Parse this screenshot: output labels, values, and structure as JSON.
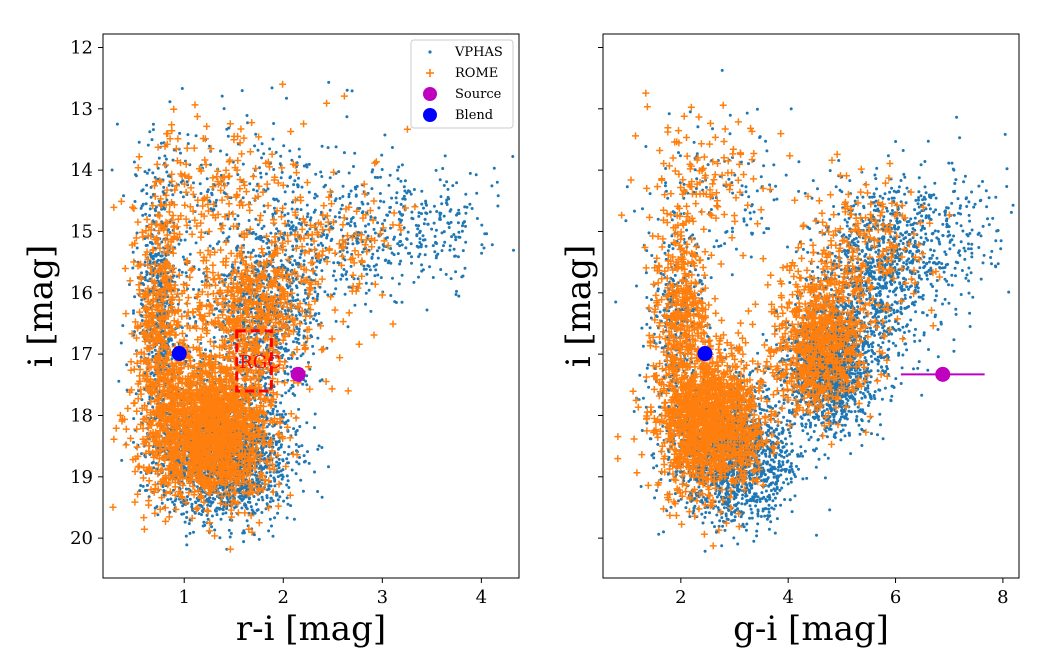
{
  "colors": {
    "vphas": "#1f77b4",
    "rome": "#ff7f0e",
    "source": "#bf00bf",
    "blend": "#0000ff",
    "rgc": "#ff0000"
  },
  "chart_data": [
    {
      "type": "scatter",
      "panel": "left",
      "xlabel": "r-i [mag]",
      "ylabel": "i [mag]",
      "xlim": [
        0.18,
        4.38
      ],
      "ylim": [
        20.65,
        11.78
      ],
      "y_inverted": true,
      "xticks": [
        1,
        2,
        3,
        4
      ],
      "yticks": [
        12,
        13,
        14,
        15,
        16,
        17,
        18,
        19,
        20
      ],
      "legend": {
        "location": "top-right",
        "entries": [
          {
            "label": "VPHAS",
            "marker": "dot"
          },
          {
            "label": "ROME",
            "marker": "plus"
          },
          {
            "label": "Source",
            "marker": "circle"
          },
          {
            "label": "Blend",
            "marker": "circle"
          }
        ]
      },
      "annotation": {
        "text": "RGC",
        "box_x": [
          1.53,
          1.88
        ],
        "box_y": [
          16.62,
          17.6
        ]
      },
      "source": {
        "x": 2.15,
        "y": 17.33,
        "xerr": 0
      },
      "blend": {
        "x": 0.95,
        "y": 16.99
      },
      "series": [
        {
          "name": "VPHAS",
          "regions": [
            {
              "cx": 1.4,
              "cy": 18.6,
              "sx": 0.33,
              "sy": 0.55,
              "n": 2200
            },
            {
              "cx": 0.75,
              "cy": 16.3,
              "sx": 0.12,
              "sy": 1.1,
              "n": 650
            },
            {
              "cx": 1.8,
              "cy": 16.3,
              "sx": 0.28,
              "sy": 0.7,
              "n": 900
            },
            {
              "cx": 2.7,
              "cy": 15.0,
              "sx": 0.55,
              "sy": 0.55,
              "n": 420
            },
            {
              "cx": 3.5,
              "cy": 14.9,
              "sx": 0.35,
              "sy": 0.45,
              "n": 140
            },
            {
              "cx": 1.5,
              "cy": 14.2,
              "sx": 0.6,
              "sy": 0.55,
              "n": 180
            }
          ]
        },
        {
          "name": "ROME",
          "regions": [
            {
              "cx": 1.25,
              "cy": 18.2,
              "sx": 0.3,
              "sy": 0.6,
              "n": 1700
            },
            {
              "cx": 0.75,
              "cy": 16.5,
              "sx": 0.13,
              "sy": 1.0,
              "n": 450
            },
            {
              "cx": 1.7,
              "cy": 16.4,
              "sx": 0.28,
              "sy": 0.6,
              "n": 500
            },
            {
              "cx": 2.4,
              "cy": 15.2,
              "sx": 0.45,
              "sy": 0.6,
              "n": 160
            },
            {
              "cx": 1.4,
              "cy": 14.3,
              "sx": 0.5,
              "sy": 0.6,
              "n": 160
            },
            {
              "cx": 1.2,
              "cy": 17.8,
              "sx": 0.55,
              "sy": 0.9,
              "n": 60
            }
          ]
        }
      ]
    },
    {
      "type": "scatter",
      "panel": "right",
      "xlabel": "g-i [mag]",
      "ylabel": "i [mag]",
      "xlim": [
        0.55,
        8.3
      ],
      "ylim": [
        20.65,
        11.78
      ],
      "y_inverted": true,
      "xticks": [
        2,
        4,
        6,
        8
      ],
      "yticks": [
        12,
        13,
        14,
        15,
        16,
        17,
        18,
        19,
        20
      ],
      "source": {
        "x": 6.88,
        "y": 17.33,
        "xerr": 0.78
      },
      "blend": {
        "x": 2.45,
        "y": 16.99
      },
      "series": [
        {
          "name": "VPHAS",
          "regions": [
            {
              "cx": 3.0,
              "cy": 18.6,
              "sx": 0.55,
              "sy": 0.55,
              "n": 1800
            },
            {
              "cx": 4.8,
              "cy": 17.2,
              "sx": 0.4,
              "sy": 0.5,
              "n": 1600
            },
            {
              "cx": 5.6,
              "cy": 15.8,
              "sx": 0.55,
              "sy": 0.7,
              "n": 900
            },
            {
              "cx": 6.6,
              "cy": 15.0,
              "sx": 0.7,
              "sy": 0.6,
              "n": 350
            },
            {
              "cx": 1.9,
              "cy": 16.5,
              "sx": 0.3,
              "sy": 1.0,
              "n": 350
            },
            {
              "cx": 3.0,
              "cy": 14.2,
              "sx": 0.8,
              "sy": 0.6,
              "n": 120
            }
          ]
        },
        {
          "name": "ROME",
          "regions": [
            {
              "cx": 2.6,
              "cy": 18.1,
              "sx": 0.5,
              "sy": 0.6,
              "n": 1300
            },
            {
              "cx": 2.0,
              "cy": 16.6,
              "sx": 0.25,
              "sy": 0.9,
              "n": 450
            },
            {
              "cx": 4.6,
              "cy": 16.8,
              "sx": 0.45,
              "sy": 0.6,
              "n": 700
            },
            {
              "cx": 5.5,
              "cy": 15.3,
              "sx": 0.6,
              "sy": 0.6,
              "n": 200
            },
            {
              "cx": 2.6,
              "cy": 14.2,
              "sx": 0.7,
              "sy": 0.6,
              "n": 130
            }
          ]
        }
      ]
    }
  ]
}
